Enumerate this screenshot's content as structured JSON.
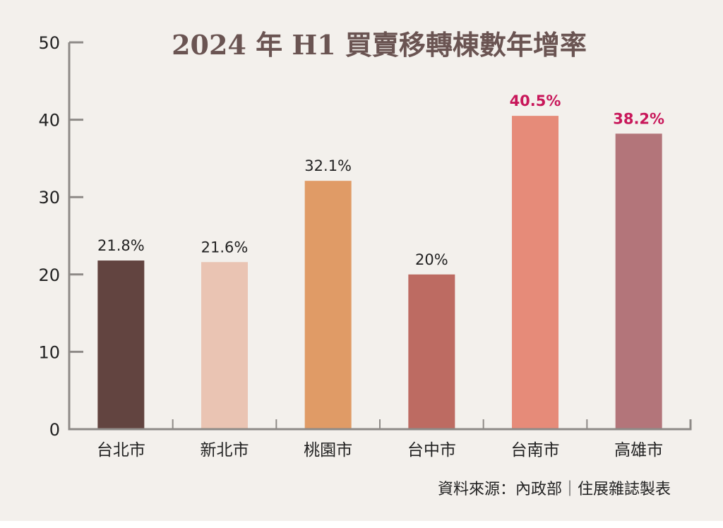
{
  "chart_data": {
    "type": "bar",
    "title": "2024 年 H1 買賣移轉棟數年增率",
    "xlabel": "",
    "ylabel": "",
    "ylim": [
      0,
      50
    ],
    "yticks": [
      0,
      10,
      20,
      30,
      40,
      50
    ],
    "grid": false,
    "categories": [
      "台北市",
      "新北市",
      "桃園市",
      "台中市",
      "台南市",
      "高雄市"
    ],
    "values": [
      21.8,
      21.6,
      32.1,
      20,
      40.5,
      38.2
    ],
    "data_labels": [
      "21.8%",
      "21.6%",
      "32.1%",
      "20%",
      "40.5%",
      "38.2%"
    ],
    "highlight": [
      false,
      false,
      false,
      false,
      true,
      true
    ],
    "bar_colors": [
      "#624440",
      "#eac4b3",
      "#e09b66",
      "#bd6b62",
      "#e68b79",
      "#b3757a"
    ],
    "highlight_color": "#c8175a",
    "source": "資料來源：內政部｜住展雜誌製表"
  }
}
